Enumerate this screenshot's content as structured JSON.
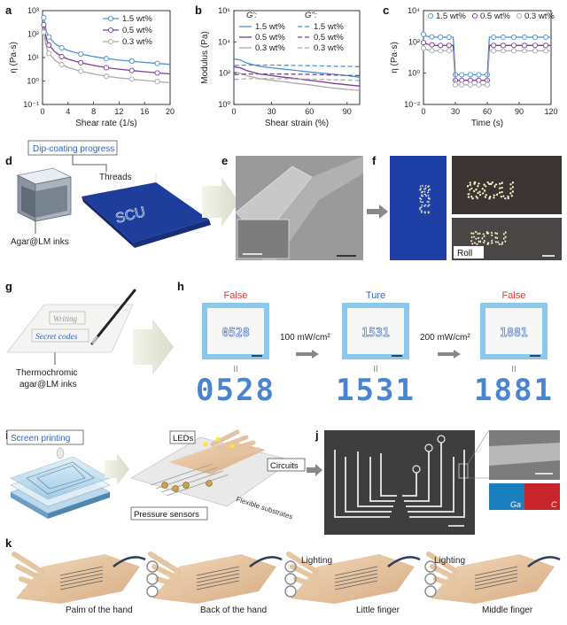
{
  "panel_labels": {
    "a": "a",
    "b": "b",
    "c": "c",
    "d": "d",
    "e": "e",
    "f": "f",
    "g": "g",
    "h": "h",
    "i": "i",
    "j": "j",
    "k": "k"
  },
  "chart_data": [
    {
      "id": "a",
      "type": "line",
      "xlabel": "Shear rate (1/s)",
      "ylabel": "η (Pa·s)",
      "xlim": [
        0,
        20
      ],
      "xticks": [
        "0",
        "4",
        "8",
        "12",
        "16",
        "20"
      ],
      "ylim_log10": [
        -1,
        3
      ],
      "yticks": [
        "10⁻¹",
        "10⁰",
        "10¹",
        "10²",
        "10³"
      ],
      "legend": "top-right",
      "x": [
        0.2,
        0.6,
        1,
        2,
        3,
        4,
        6,
        8,
        10,
        12,
        14,
        16,
        18,
        20
      ],
      "series": [
        {
          "name": "1.5 wt%",
          "color": "#4a90d9",
          "values": [
            500,
            130,
            75,
            38,
            26,
            20,
            14,
            11,
            9,
            7.8,
            7,
            6.2,
            5.6,
            5.1
          ]
        },
        {
          "name": "0.5 wt%",
          "color": "#7b3f98",
          "values": [
            250,
            60,
            34,
            17,
            11,
            8.5,
            6,
            4.6,
            3.7,
            3.2,
            2.8,
            2.5,
            2.2,
            2.0
          ]
        },
        {
          "name": "0.3 wt%",
          "color": "#aaaaaa",
          "values": [
            120,
            28,
            15,
            7.5,
            5,
            3.8,
            2.6,
            2.0,
            1.6,
            1.35,
            1.2,
            1.05,
            0.95,
            0.85
          ]
        }
      ]
    },
    {
      "id": "b",
      "type": "line",
      "xlabel": "Shear strain (%)",
      "ylabel": "Modulus (Pa)",
      "xlim": [
        0,
        100
      ],
      "xticks": [
        "0",
        "30",
        "60",
        "90"
      ],
      "ylim_log10": [
        0,
        6
      ],
      "yticks": [
        "10⁰",
        "10²",
        "10⁴",
        "10⁶"
      ],
      "legend": "top",
      "legend_headers": {
        "storage": "G':",
        "loss": "G'':"
      },
      "x": [
        0.5,
        5,
        10,
        20,
        30,
        40,
        50,
        60,
        70,
        80,
        90,
        100
      ],
      "series": [
        {
          "name": "1.5 wt%",
          "kind": "G'",
          "color": "#4a90d9",
          "values": [
            800,
            700,
            450,
            280,
            220,
            180,
            150,
            120,
            100,
            85,
            70,
            55
          ]
        },
        {
          "name": "0.5 wt%",
          "kind": "G'",
          "color": "#7b3f98",
          "values": [
            250,
            220,
            150,
            90,
            70,
            55,
            45,
            35,
            28,
            22,
            18,
            15
          ]
        },
        {
          "name": "0.3 wt%",
          "kind": "G'",
          "color": "#aaaaaa",
          "values": [
            120,
            100,
            70,
            45,
            35,
            28,
            22,
            18,
            14,
            11,
            9,
            8
          ]
        },
        {
          "name": "1.5 wt%",
          "kind": "G''",
          "color": "#4a90d9",
          "values": [
            300,
            320,
            330,
            330,
            330,
            320,
            310,
            300,
            290,
            280,
            270,
            260
          ]
        },
        {
          "name": "0.5 wt%",
          "kind": "G''",
          "color": "#7b3f98",
          "values": [
            80,
            85,
            88,
            90,
            90,
            88,
            86,
            84,
            80,
            76,
            72,
            70
          ]
        },
        {
          "name": "0.3 wt%",
          "kind": "G''",
          "color": "#aaaaaa",
          "values": [
            40,
            42,
            44,
            45,
            45,
            44,
            43,
            42,
            40,
            38,
            36,
            34
          ]
        }
      ]
    },
    {
      "id": "c",
      "type": "line",
      "xlabel": "Time (s)",
      "ylabel": "η (Pa·s)",
      "xlim": [
        0,
        120
      ],
      "xticks": [
        "0",
        "30",
        "60",
        "90",
        "120"
      ],
      "ylim_log10": [
        -2,
        4
      ],
      "yticks": [
        "10⁻²",
        "10⁰",
        "10²",
        "10⁴"
      ],
      "legend": "top",
      "x": [
        0,
        4,
        8,
        12,
        16,
        20,
        24,
        28,
        30,
        32,
        36,
        40,
        44,
        48,
        52,
        56,
        60,
        62,
        66,
        70,
        75,
        80,
        85,
        90,
        95,
        100,
        105,
        110,
        115,
        120
      ],
      "series": [
        {
          "name": "1.5 wt%",
          "color": "#4a90d9",
          "values": [
            300,
            220,
            210,
            200,
            200,
            200,
            200,
            200,
            0.8,
            0.8,
            0.8,
            0.8,
            0.8,
            0.8,
            0.8,
            0.8,
            0.8,
            200,
            200,
            200,
            200,
            200,
            200,
            200,
            200,
            200,
            200,
            200,
            200,
            200
          ]
        },
        {
          "name": "0.5 wt%",
          "color": "#7b3f98",
          "values": [
            90,
            70,
            65,
            60,
            60,
            60,
            60,
            60,
            0.35,
            0.35,
            0.35,
            0.35,
            0.35,
            0.35,
            0.35,
            0.35,
            0.35,
            60,
            60,
            60,
            60,
            60,
            60,
            60,
            60,
            60,
            60,
            60,
            60,
            60
          ]
        },
        {
          "name": "0.3 wt%",
          "color": "#aaaaaa",
          "values": [
            40,
            30,
            28,
            27,
            27,
            27,
            27,
            27,
            0.18,
            0.18,
            0.18,
            0.18,
            0.18,
            0.18,
            0.18,
            0.18,
            0.18,
            27,
            27,
            27,
            27,
            27,
            27,
            27,
            27,
            27,
            27,
            27,
            27,
            27
          ]
        }
      ]
    }
  ],
  "panel_d": {
    "dip_label": "Dip-coating progress",
    "threads": "Threads",
    "inks": "Agar@LM inks",
    "fabric_text": "SCU"
  },
  "panel_f": {
    "vertical_text": "SCU",
    "lit_text": "SCU",
    "roll": "Roll"
  },
  "panel_g": {
    "writing": "Writing",
    "secret": "Secret codes",
    "ink1": "Thermochromic",
    "ink2": "agar@LM inks"
  },
  "panel_h": {
    "states": [
      {
        "label": "False",
        "color": "#d63a3a",
        "panel": "0528",
        "digits": "0528"
      },
      {
        "label": "Ture",
        "color": "#2f63c9",
        "panel": "1531",
        "digits": "1531"
      },
      {
        "label": "False",
        "color": "#d63a3a",
        "panel": "1881",
        "digits": "1881"
      }
    ],
    "arrow1": "100 mW/cm²",
    "arrow2": "200 mW/cm²",
    "equals": "II"
  },
  "panel_i": {
    "screen": "Screen printing",
    "leds": "LEDs",
    "circuits": "Circuits",
    "sensors": "Pressure sensors",
    "substrates": "Flexible substrates"
  },
  "panel_j": {
    "ga": "Ga",
    "c": "C"
  },
  "panel_k": {
    "captions": [
      "Palm of the hand",
      "Back of the hand",
      "Little finger",
      "Middle finger"
    ],
    "lighting1": "Lighting",
    "lighting2": "Lighting"
  }
}
